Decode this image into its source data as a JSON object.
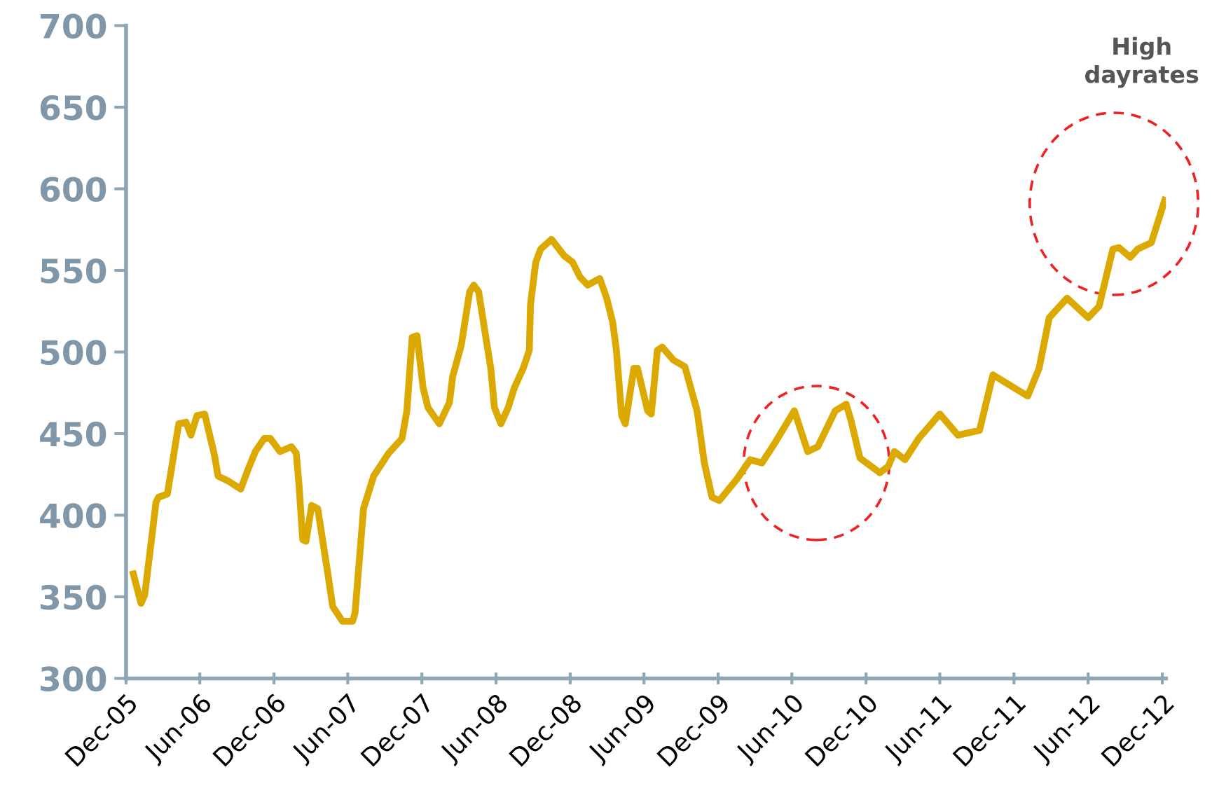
{
  "chart_data": {
    "type": "line",
    "x": [
      "2005-12-19",
      "2006-01-07",
      "2006-01-16",
      "2006-02-13",
      "2006-02-19",
      "2006-03-13",
      "2006-04-10",
      "2006-04-28",
      "2006-05-10",
      "2006-05-25",
      "2006-06-13",
      "2006-07-07",
      "2006-07-16",
      "2006-08-10",
      "2006-09-10",
      "2006-09-28",
      "2006-10-16",
      "2006-11-07",
      "2006-11-22",
      "2006-12-16",
      "2007-01-13",
      "2007-01-25",
      "2007-02-01",
      "2007-02-10",
      "2007-02-18",
      "2007-03-04",
      "2007-03-19",
      "2007-04-13",
      "2007-04-25",
      "2007-05-19",
      "2007-06-13",
      "2007-06-19",
      "2007-07-10",
      "2007-08-04",
      "2007-09-10",
      "2007-10-13",
      "2007-10-25",
      "2007-11-07",
      "2007-11-19",
      "2007-12-04",
      "2007-12-16",
      "2008-01-13",
      "2008-02-07",
      "2008-02-15",
      "2008-03-07",
      "2008-03-28",
      "2008-04-07",
      "2008-04-19",
      "2008-05-10",
      "2008-05-19",
      "2008-05-28",
      "2008-06-13",
      "2008-07-01",
      "2008-07-16",
      "2008-08-07",
      "2008-08-22",
      "2008-08-25",
      "2008-09-07",
      "2008-09-19",
      "2008-10-16",
      "2008-11-16",
      "2008-12-07",
      "2008-12-25",
      "2009-01-13",
      "2009-02-12",
      "2009-03-01",
      "2009-03-16",
      "2009-03-25",
      "2009-04-07",
      "2009-04-16",
      "2009-05-07",
      "2009-05-16",
      "2009-06-10",
      "2009-06-19",
      "2009-07-04",
      "2009-07-16",
      "2009-08-13",
      "2009-09-10",
      "2009-10-10",
      "2009-10-28",
      "2009-11-16",
      "2009-12-04",
      "2010-01-16",
      "2010-02-18",
      "2010-03-19",
      "2010-04-22",
      "2010-06-07",
      "2010-07-10",
      "2010-08-04",
      "2010-09-16",
      "2010-10-13",
      "2010-10-25",
      "2010-11-16",
      "2011-01-04",
      "2011-01-25",
      "2011-02-09",
      "2011-03-07",
      "2011-04-10",
      "2011-06-01",
      "2011-07-16",
      "2011-09-07",
      "2011-10-10",
      "2012-01-04",
      "2012-02-01",
      "2012-02-26",
      "2012-04-10",
      "2012-06-01",
      "2012-06-28",
      "2012-08-01",
      "2012-08-16",
      "2012-09-13",
      "2012-10-01",
      "2012-11-04",
      "2012-12-07"
    ],
    "series": [
      {
        "color": "#dba900",
        "values": [
          364,
          346,
          351,
          408,
          411,
          413,
          456,
          457,
          449,
          461,
          462,
          437,
          424,
          421,
          416,
          428,
          439,
          447,
          447,
          439,
          442,
          438,
          418,
          385,
          384,
          406,
          404,
          364,
          344,
          335,
          335,
          340,
          404,
          424,
          438,
          447,
          464,
          509,
          510,
          478,
          466,
          456,
          469,
          485,
          504,
          537,
          541,
          537,
          504,
          490,
          466,
          456,
          466,
          478,
          490,
          501,
          529,
          555,
          563,
          569,
          559,
          555,
          546,
          541,
          545,
          533,
          518,
          501,
          461,
          456,
          490,
          490,
          464,
          462,
          501,
          503,
          495,
          491,
          464,
          432,
          411,
          409,
          422,
          434,
          432,
          445,
          464,
          439,
          442,
          464,
          468,
          458,
          435,
          426,
          430,
          439,
          434,
          447,
          462,
          449,
          452,
          486,
          473,
          490,
          521,
          533,
          521,
          528,
          563,
          564,
          558,
          563,
          567,
          593
        ]
      }
    ],
    "xlim": [
      "2005-12-01",
      "2012-12-10"
    ],
    "xticks": [
      {
        "value": "2005-12-01",
        "label": "Dec-05"
      },
      {
        "value": "2006-06-01",
        "label": "Jun-06"
      },
      {
        "value": "2006-12-01",
        "label": "Dec-06"
      },
      {
        "value": "2007-06-01",
        "label": "Jun-07"
      },
      {
        "value": "2007-12-01",
        "label": "Dec-07"
      },
      {
        "value": "2008-06-01",
        "label": "Jun-08"
      },
      {
        "value": "2008-12-01",
        "label": "Dec-08"
      },
      {
        "value": "2009-06-01",
        "label": "Jun-09"
      },
      {
        "value": "2009-12-01",
        "label": "Dec-09"
      },
      {
        "value": "2010-06-01",
        "label": "Jun-10"
      },
      {
        "value": "2010-12-01",
        "label": "Dec-10"
      },
      {
        "value": "2011-06-01",
        "label": "Jun-11"
      },
      {
        "value": "2011-12-01",
        "label": "Dec-11"
      },
      {
        "value": "2012-06-01",
        "label": "Jun-12"
      },
      {
        "value": "2012-12-01",
        "label": "Dec-12"
      }
    ],
    "ylim": [
      300,
      700
    ],
    "yticks": [
      300,
      350,
      400,
      450,
      500,
      550,
      600,
      650,
      700
    ],
    "grid": false,
    "legend": false,
    "marker": "none",
    "line_style": "solid",
    "annotations": [
      "High\ndayrates"
    ]
  }
}
